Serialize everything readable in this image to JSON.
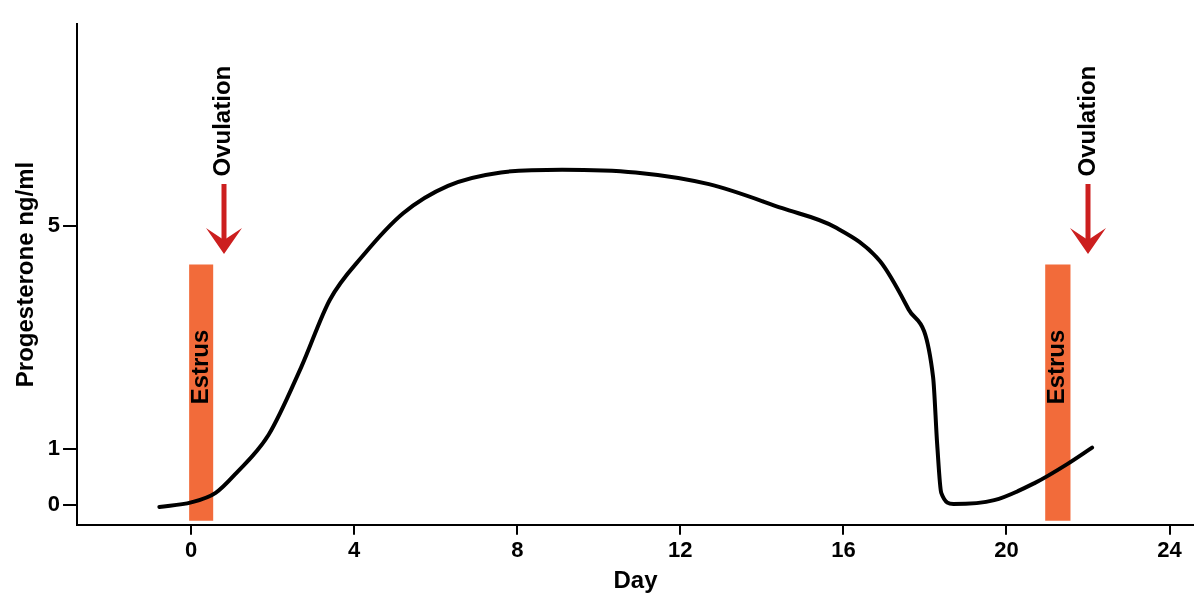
{
  "chart_data": {
    "type": "line",
    "xlabel": "Day",
    "ylabel": "Progesterone ng/ml",
    "series": [
      {
        "color": "#000000",
        "x": [
          -0.78,
          0,
          0.6,
          1.1,
          1.9,
          2.7,
          3.4,
          4.2,
          5.2,
          6.3,
          7.6,
          9.1,
          10.9,
          12.7,
          14.5,
          15.8,
          16.9,
          17.6,
          18.2,
          18.3,
          18.4,
          18.7,
          19.7,
          20.7,
          21.5,
          22.1
        ],
        "values": [
          -0.03,
          0.05,
          0.22,
          0.57,
          1.26,
          2.47,
          3.67,
          4.45,
          5.22,
          5.71,
          5.95,
          6.0,
          5.95,
          5.74,
          5.31,
          4.97,
          4.36,
          3.5,
          2.29,
          1.09,
          0.22,
          0.02,
          0.09,
          0.4,
          0.74,
          1.03
        ]
      }
    ],
    "xlim": [
      -2.8,
      24.6
    ],
    "xticks": [
      0,
      4,
      8,
      12,
      16,
      20,
      24
    ],
    "ylim": [
      -0.35,
      8.6
    ],
    "yticks": [
      0,
      1,
      5
    ],
    "grid": false,
    "legend": false,
    "marker": "none",
    "line_style": "solid",
    "bands": [
      {
        "axis": "x",
        "from": -0.05,
        "to": 0.54,
        "label": "Estrus",
        "color": "#f26b3a"
      },
      {
        "axis": "x",
        "from": 20.95,
        "to": 21.57,
        "label": "Estrus",
        "color": "#f26b3a"
      }
    ],
    "ref_lines": [
      {
        "axis": "x",
        "value": 0.8,
        "label": "Ovulation",
        "color": "#cc1f1f"
      },
      {
        "axis": "x",
        "value": 22.0,
        "label": "Ovulation",
        "color": "#cc1f1f"
      }
    ]
  }
}
